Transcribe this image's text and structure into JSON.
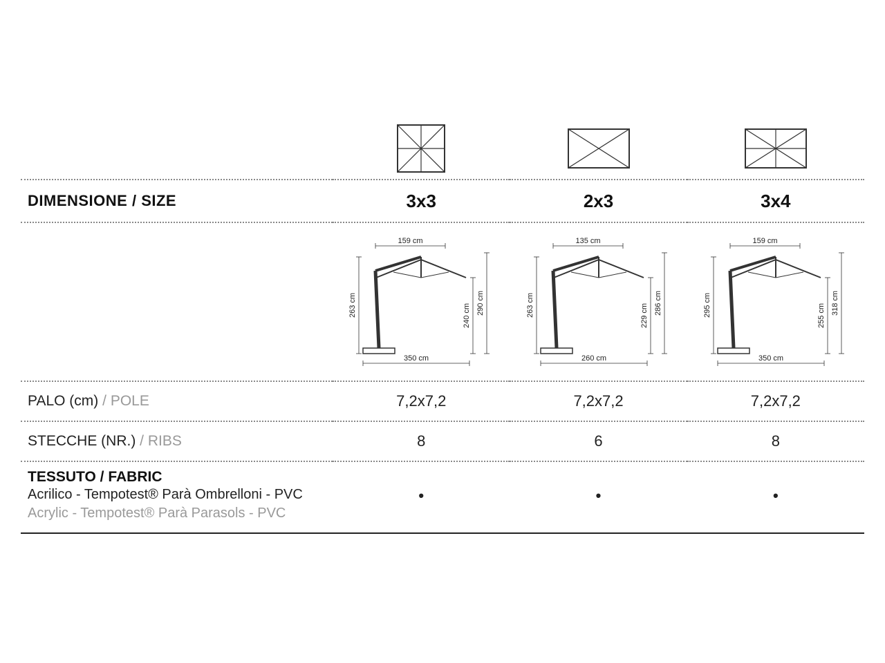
{
  "labels": {
    "size_primary": "DIMENSIONE",
    "size_sep": "  /  ",
    "size_secondary": "SIZE",
    "pole_primary": "PALO (cm)",
    "pole_sep": "  /  ",
    "pole_secondary": "POLE",
    "ribs_primary": "STECCHE (NR.)",
    "ribs_sep": "  /  ",
    "ribs_secondary": "RIBS",
    "fabric_primary": "TESSUTO",
    "fabric_sep": "  /  ",
    "fabric_secondary": "FABRIC",
    "fabric_line_it": "Acrilico - Tempotest® Parà Ombrelloni - PVC",
    "fabric_line_en": "Acrylic - Tempotest® Parà Parasols - PVC"
  },
  "columns": [
    {
      "size": "3x3",
      "icon_ribs": 8,
      "icon_aspect": "square",
      "pole": "7,2x7,2",
      "ribs": "8",
      "fabric_mark": "•",
      "diagram": {
        "top_width": "159 cm",
        "bottom_width": "350 cm",
        "pole_h": "263 cm",
        "clear_h": "240 cm",
        "total_h": "290 cm"
      }
    },
    {
      "size": "2x3",
      "icon_ribs": 6,
      "icon_aspect": "rect",
      "pole": "7,2x7,2",
      "ribs": "6",
      "fabric_mark": "•",
      "diagram": {
        "top_width": "135 cm",
        "bottom_width": "260 cm",
        "pole_h": "263 cm",
        "clear_h": "229 cm",
        "total_h": "286 cm"
      }
    },
    {
      "size": "3x4",
      "icon_ribs": 8,
      "icon_aspect": "rect",
      "pole": "7,2x7,2",
      "ribs": "8",
      "fabric_mark": "•",
      "diagram": {
        "top_width": "159 cm",
        "bottom_width": "350 cm",
        "pole_h": "295 cm",
        "clear_h": "255 cm",
        "total_h": "318 cm"
      }
    }
  ],
  "style": {
    "text_color": "#111111",
    "muted_color": "#999999",
    "line_color": "#222222",
    "dotted_color": "#888888",
    "background": "#ffffff",
    "font_family": "Arial",
    "diagram_stroke": "#333333"
  }
}
